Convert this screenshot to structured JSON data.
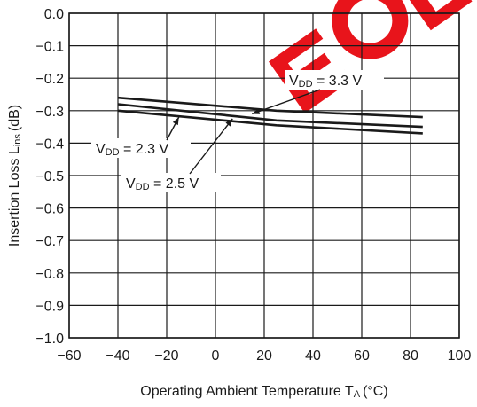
{
  "chart_data": {
    "type": "line",
    "xlabel": {
      "main": "Operating Ambient Temperature T",
      "subscript": "A",
      "unit": "(°C)"
    },
    "ylabel": {
      "main": "Insertion Loss L",
      "subscript": "ins",
      "unit": "(dB)"
    },
    "xlim": [
      -60,
      100
    ],
    "ylim": [
      -1.0,
      0.0
    ],
    "x_ticks": [
      -60,
      -40,
      -20,
      0,
      20,
      40,
      60,
      80,
      100
    ],
    "x_tick_labels": [
      "−60",
      "−40",
      "−20",
      "0",
      "20",
      "40",
      "60",
      "80",
      "100"
    ],
    "y_ticks": [
      0.0,
      -0.1,
      -0.2,
      -0.3,
      -0.4,
      -0.5,
      -0.6,
      -0.7,
      -0.8,
      -0.9,
      -1.0
    ],
    "y_tick_labels": [
      "0.0",
      "−0.1",
      "−0.2",
      "−0.3",
      "−0.4",
      "−0.5",
      "−0.6",
      "−0.7",
      "−0.8",
      "−0.9",
      "−1.0"
    ],
    "grid": true,
    "series": [
      {
        "name": "VDD = 3.3 V",
        "x": [
          -40,
          25,
          85
        ],
        "y": [
          -0.26,
          -0.3,
          -0.32
        ]
      },
      {
        "name": "VDD = 2.5 V",
        "x": [
          -40,
          25,
          85
        ],
        "y": [
          -0.28,
          -0.33,
          -0.35
        ]
      },
      {
        "name": "VDD = 2.3 V",
        "x": [
          -40,
          25,
          85
        ],
        "y": [
          -0.3,
          -0.345,
          -0.37
        ]
      }
    ],
    "annotations": [
      {
        "series": 0,
        "label_main": "V",
        "label_sub": "DD",
        "label_rest": " = 3.3 V",
        "target": [
          15,
          -0.31
        ]
      },
      {
        "series": 2,
        "label_main": "V",
        "label_sub": "DD",
        "label_rest": " = 2.3 V",
        "target": [
          -15,
          -0.32
        ]
      },
      {
        "series": 1,
        "label_main": "V",
        "label_sub": "DD",
        "label_rest": " = 2.5 V",
        "target": [
          7,
          -0.325
        ]
      }
    ],
    "watermark": "EOL",
    "watermark_color": "#e8141b",
    "line_color": "#1a1a1a"
  }
}
